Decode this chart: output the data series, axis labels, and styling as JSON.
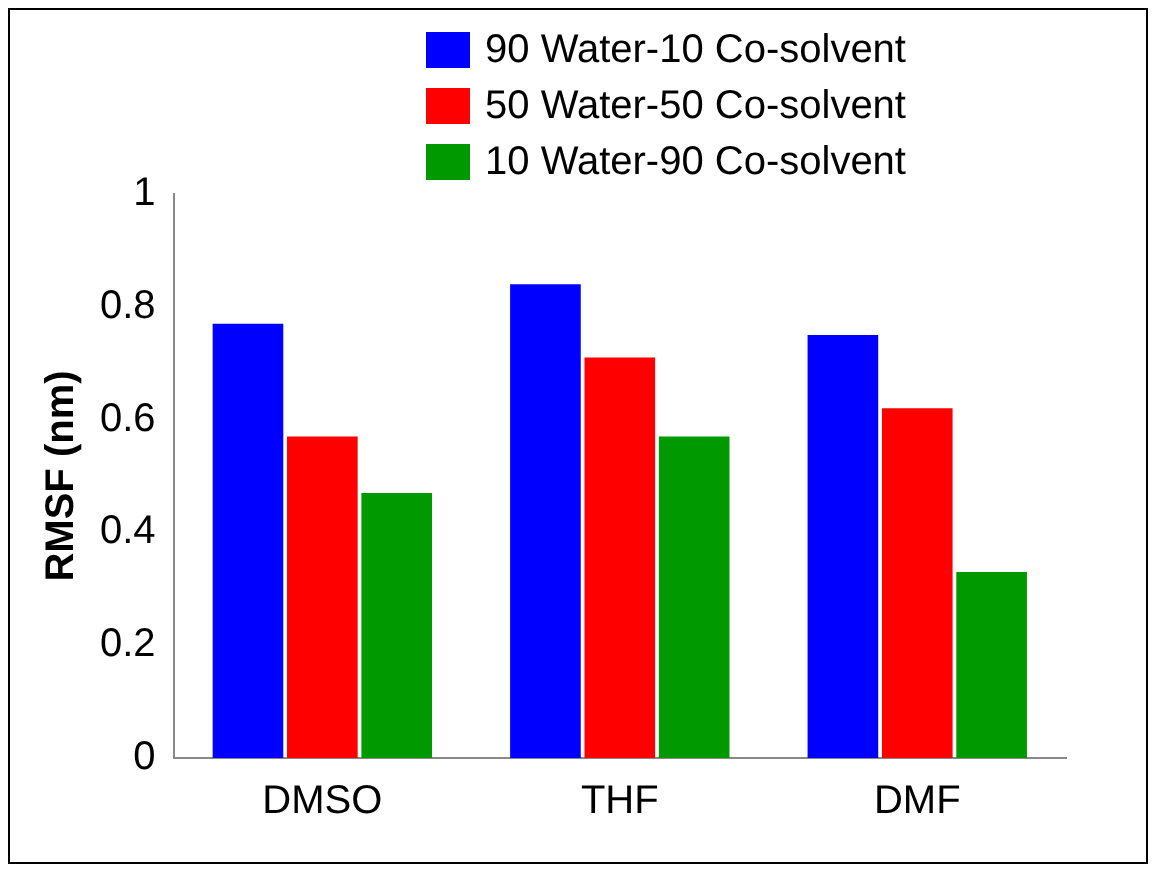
{
  "chart_data": {
    "type": "bar",
    "ylabel": "RMSF (nm)",
    "categories": [
      "DMSO",
      "THF",
      "DMF"
    ],
    "series": [
      {
        "name": "90 Water-10 Co-solvent",
        "color": "#0000ff",
        "values": [
          0.77,
          0.84,
          0.75
        ]
      },
      {
        "name": "50 Water-50 Co-solvent",
        "color": "#ff0000",
        "values": [
          0.57,
          0.71,
          0.62
        ]
      },
      {
        "name": "10 Water-90 Co-solvent",
        "color": "#009900",
        "values": [
          0.47,
          0.57,
          0.33
        ]
      }
    ],
    "ylim": [
      0,
      1
    ],
    "yticks": [
      0,
      0.2,
      0.4,
      0.6,
      0.8,
      1
    ],
    "grid": false,
    "legend": "top right"
  }
}
